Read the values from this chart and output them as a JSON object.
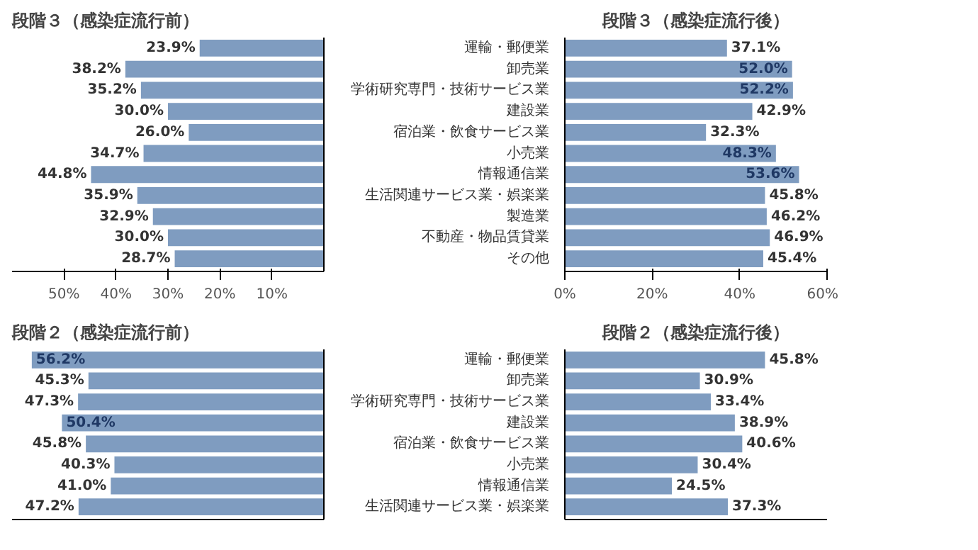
{
  "chart_data": [
    {
      "type": "bar",
      "orientation": "horizontal",
      "title": "段階３（感染症流行前）",
      "categories": [
        null,
        null,
        null,
        null,
        null,
        null,
        null,
        null,
        null,
        null,
        null
      ],
      "values": [
        23.9,
        38.2,
        35.2,
        30.0,
        26.0,
        34.7,
        44.8,
        35.9,
        32.9,
        30.0,
        28.7
      ],
      "value_labels": [
        "23.9%",
        "38.2%",
        "35.2%",
        "30.0%",
        "26.0%",
        "34.7%",
        "44.8%",
        "35.9%",
        "32.9%",
        "30.0%",
        "28.7%"
      ],
      "color": "#7f9cc0",
      "xlim": [
        60,
        0
      ],
      "xticks": [
        {
          "value": 50,
          "label": "50%"
        },
        {
          "value": 40,
          "label": "40%"
        },
        {
          "value": 30,
          "label": "30%"
        },
        {
          "value": 20,
          "label": "20%"
        },
        {
          "value": 10,
          "label": "10%"
        }
      ],
      "tick_labels": "x",
      "grid": false
    },
    {
      "type": "bar",
      "orientation": "horizontal",
      "title": "段階３（感染症流行後）",
      "categories": [
        "運輸・郵便業",
        "卸売業",
        "学術研究専門・技術サービス業",
        "建設業",
        "宿泊業・飲食サービス業",
        "小売業",
        "情報通信業",
        "生活関連サービス業・娯楽業",
        "製造業",
        "不動産・物品賃貸業",
        "その他"
      ],
      "values": [
        37.1,
        52.0,
        52.2,
        42.9,
        32.3,
        48.3,
        53.6,
        45.8,
        46.2,
        46.9,
        45.4
      ],
      "value_labels": [
        "37.1%",
        "52.0%",
        "52.2%",
        "42.9%",
        "32.3%",
        "48.3%",
        "53.6%",
        "45.8%",
        "46.2%",
        "46.9%",
        "45.4%"
      ],
      "color": "#7f9cc0",
      "xlim": [
        0,
        60
      ],
      "xticks": [
        {
          "value": 0,
          "label": "0%"
        },
        {
          "value": 20,
          "label": "20%"
        },
        {
          "value": 40,
          "label": "40%"
        },
        {
          "value": 60,
          "label": "60%"
        }
      ],
      "grid": false
    },
    {
      "type": "bar",
      "orientation": "horizontal",
      "title": "段階２（感染症流行前）",
      "categories": [
        null,
        null,
        null,
        null,
        null,
        null,
        null,
        null
      ],
      "values": [
        56.2,
        45.3,
        47.3,
        50.4,
        45.8,
        40.3,
        41.0,
        47.2
      ],
      "value_labels": [
        "56.2%",
        "45.3%",
        "47.3%",
        "50.4%",
        "45.8%",
        "40.3%",
        "41.0%",
        "47.2%"
      ],
      "color": "#7f9cc0",
      "xlim": [
        60,
        0
      ],
      "tick_labels": false,
      "grid": false
    },
    {
      "type": "bar",
      "orientation": "horizontal",
      "title": "段階２（感染症流行後）",
      "categories": [
        "運輸・郵便業",
        "卸売業",
        "学術研究専門・技術サービス業",
        "建設業",
        "宿泊業・飲食サービス業",
        "小売業",
        "情報通信業",
        "生活関連サービス業・娯楽業"
      ],
      "values": [
        45.8,
        30.9,
        33.4,
        38.9,
        40.6,
        30.4,
        24.5,
        37.3
      ],
      "value_labels": [
        "45.8%",
        "30.9%",
        "33.4%",
        "38.9%",
        "40.6%",
        "30.4%",
        "24.5%",
        "37.3%"
      ],
      "color": "#7f9cc0",
      "xlim": [
        0,
        60
      ],
      "tick_labels": "y",
      "grid": false
    }
  ]
}
